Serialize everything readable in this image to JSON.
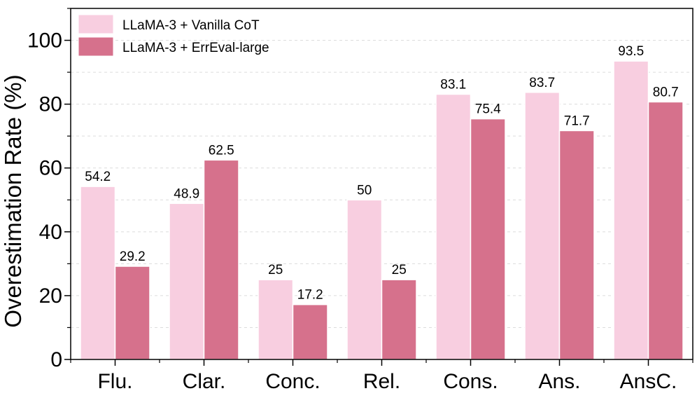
{
  "chart_data": {
    "type": "bar",
    "categories": [
      "Flu.",
      "Clar.",
      "Conc.",
      "Rel.",
      "Cons.",
      "Ans.",
      "AnsC."
    ],
    "series": [
      {
        "name": "LLaMA-3 + Vanilla CoT",
        "color": "#f8cee0",
        "values": [
          54.2,
          48.9,
          25,
          50,
          83.1,
          83.7,
          93.5
        ],
        "labels": [
          "54.2",
          "48.9",
          "25",
          "50",
          "83.1",
          "83.7",
          "93.5"
        ]
      },
      {
        "name": "LLaMA-3 + ErrEval-large",
        "color": "#d6718c",
        "values": [
          29.2,
          62.5,
          17.2,
          25,
          75.4,
          71.7,
          80.7
        ],
        "labels": [
          "29.2",
          "62.5",
          "17.2",
          "25",
          "75.4",
          "71.7",
          "80.7"
        ]
      }
    ],
    "xlabel": "",
    "ylabel": "Overestimation Rate (%)",
    "ylim": [
      0,
      110
    ],
    "yticks": [
      0,
      20,
      40,
      60,
      80,
      100
    ],
    "ytick_labels": [
      "0",
      "20",
      "40",
      "60",
      "80",
      "100"
    ],
    "grid": "horizontal-dashed",
    "legend_position": "top-left"
  }
}
